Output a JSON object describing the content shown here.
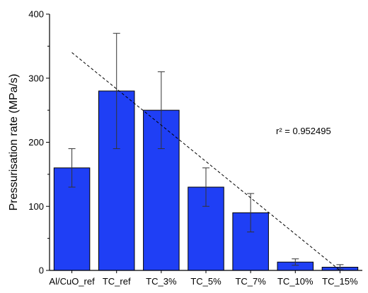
{
  "chart_data": {
    "type": "bar",
    "categories": [
      "Al/CuO_ref",
      "TC_ref",
      "TC_3%",
      "TC_5%",
      "TC_7%",
      "TC_10%",
      "TC_15%"
    ],
    "values": [
      160,
      280,
      250,
      130,
      90,
      13,
      5
    ],
    "error_low": [
      130,
      190,
      190,
      100,
      60,
      8,
      2
    ],
    "error_high": [
      190,
      370,
      310,
      160,
      120,
      18,
      9
    ],
    "ylabel": "Pressurisation rate (MPa/s)",
    "xlabel": "",
    "ylim": [
      0,
      400
    ],
    "yticks": [
      0,
      100,
      200,
      300,
      400
    ],
    "bar_color": "#1f3ff5",
    "trendline": {
      "y_start": 340,
      "y_end": 0,
      "style": "dashed"
    },
    "annotation": "r² = 0.952495",
    "grid": false
  }
}
